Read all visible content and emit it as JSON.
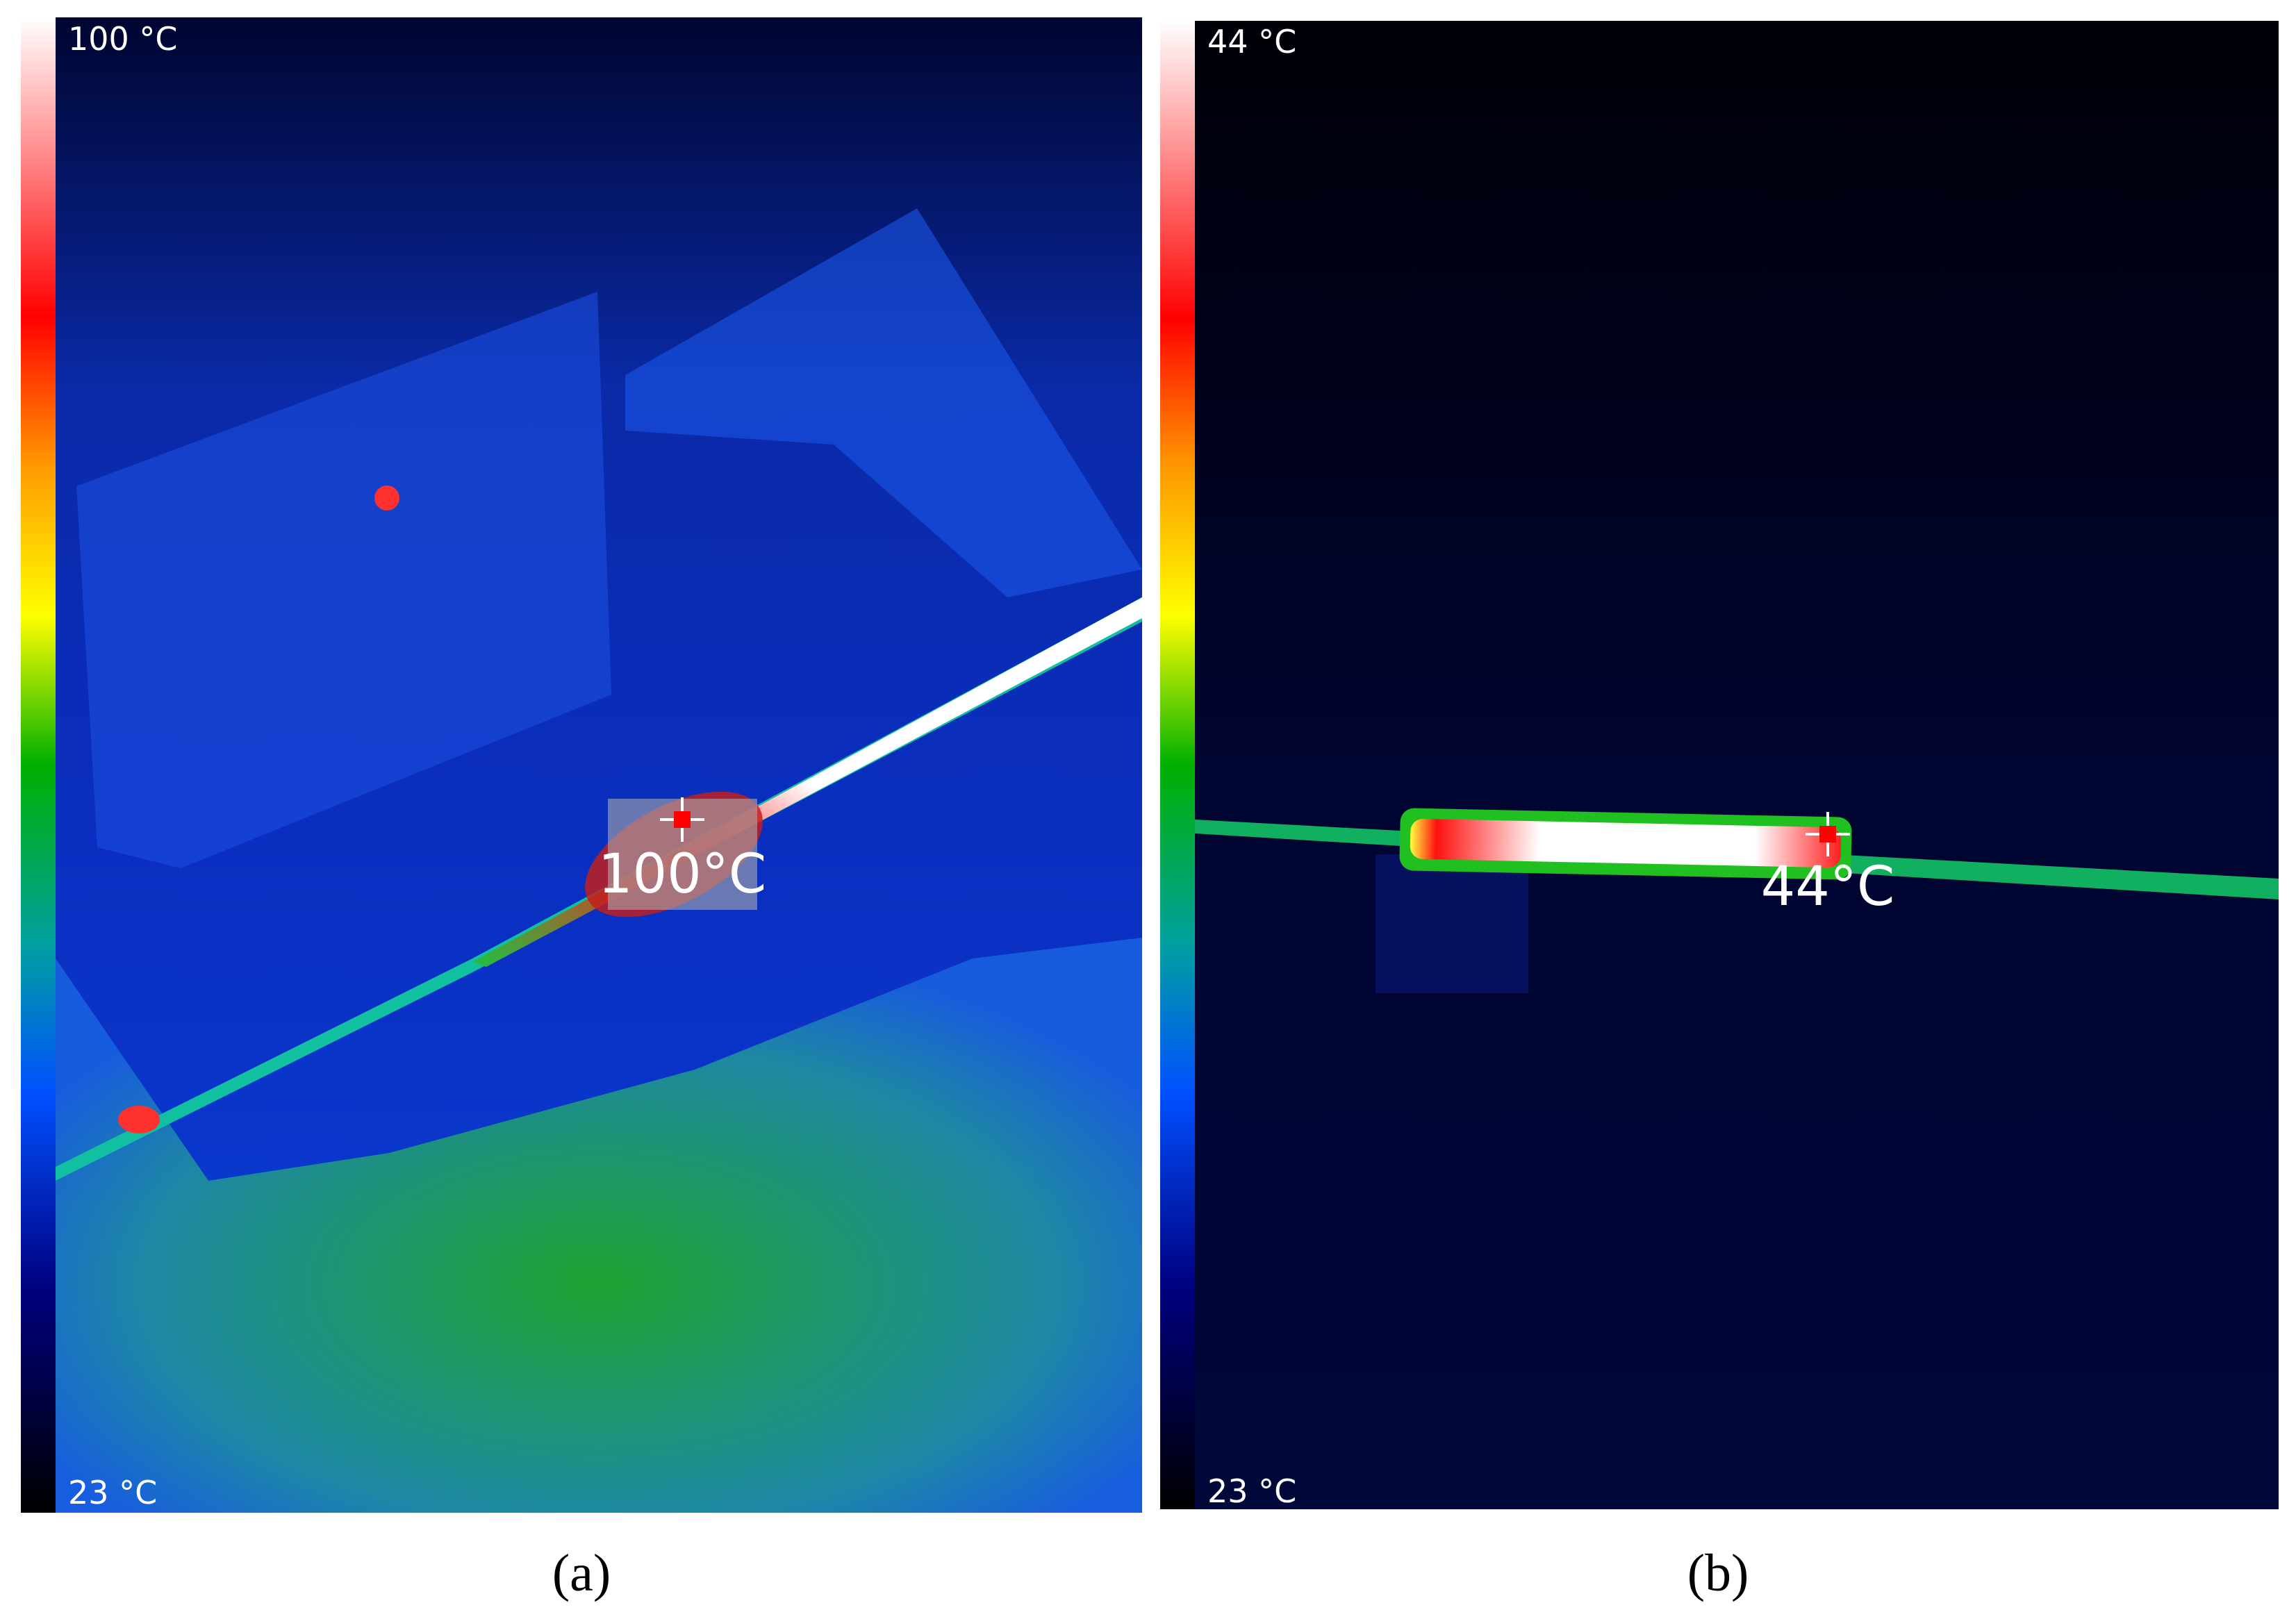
{
  "panels": [
    {
      "scale_max": "100 °C",
      "scale_min": "23 °C",
      "spot_label": "100°C",
      "caption": "(a)"
    },
    {
      "scale_max": "44 °C",
      "scale_min": "23 °C",
      "spot_label": "44°C",
      "caption": "(b)"
    }
  ]
}
